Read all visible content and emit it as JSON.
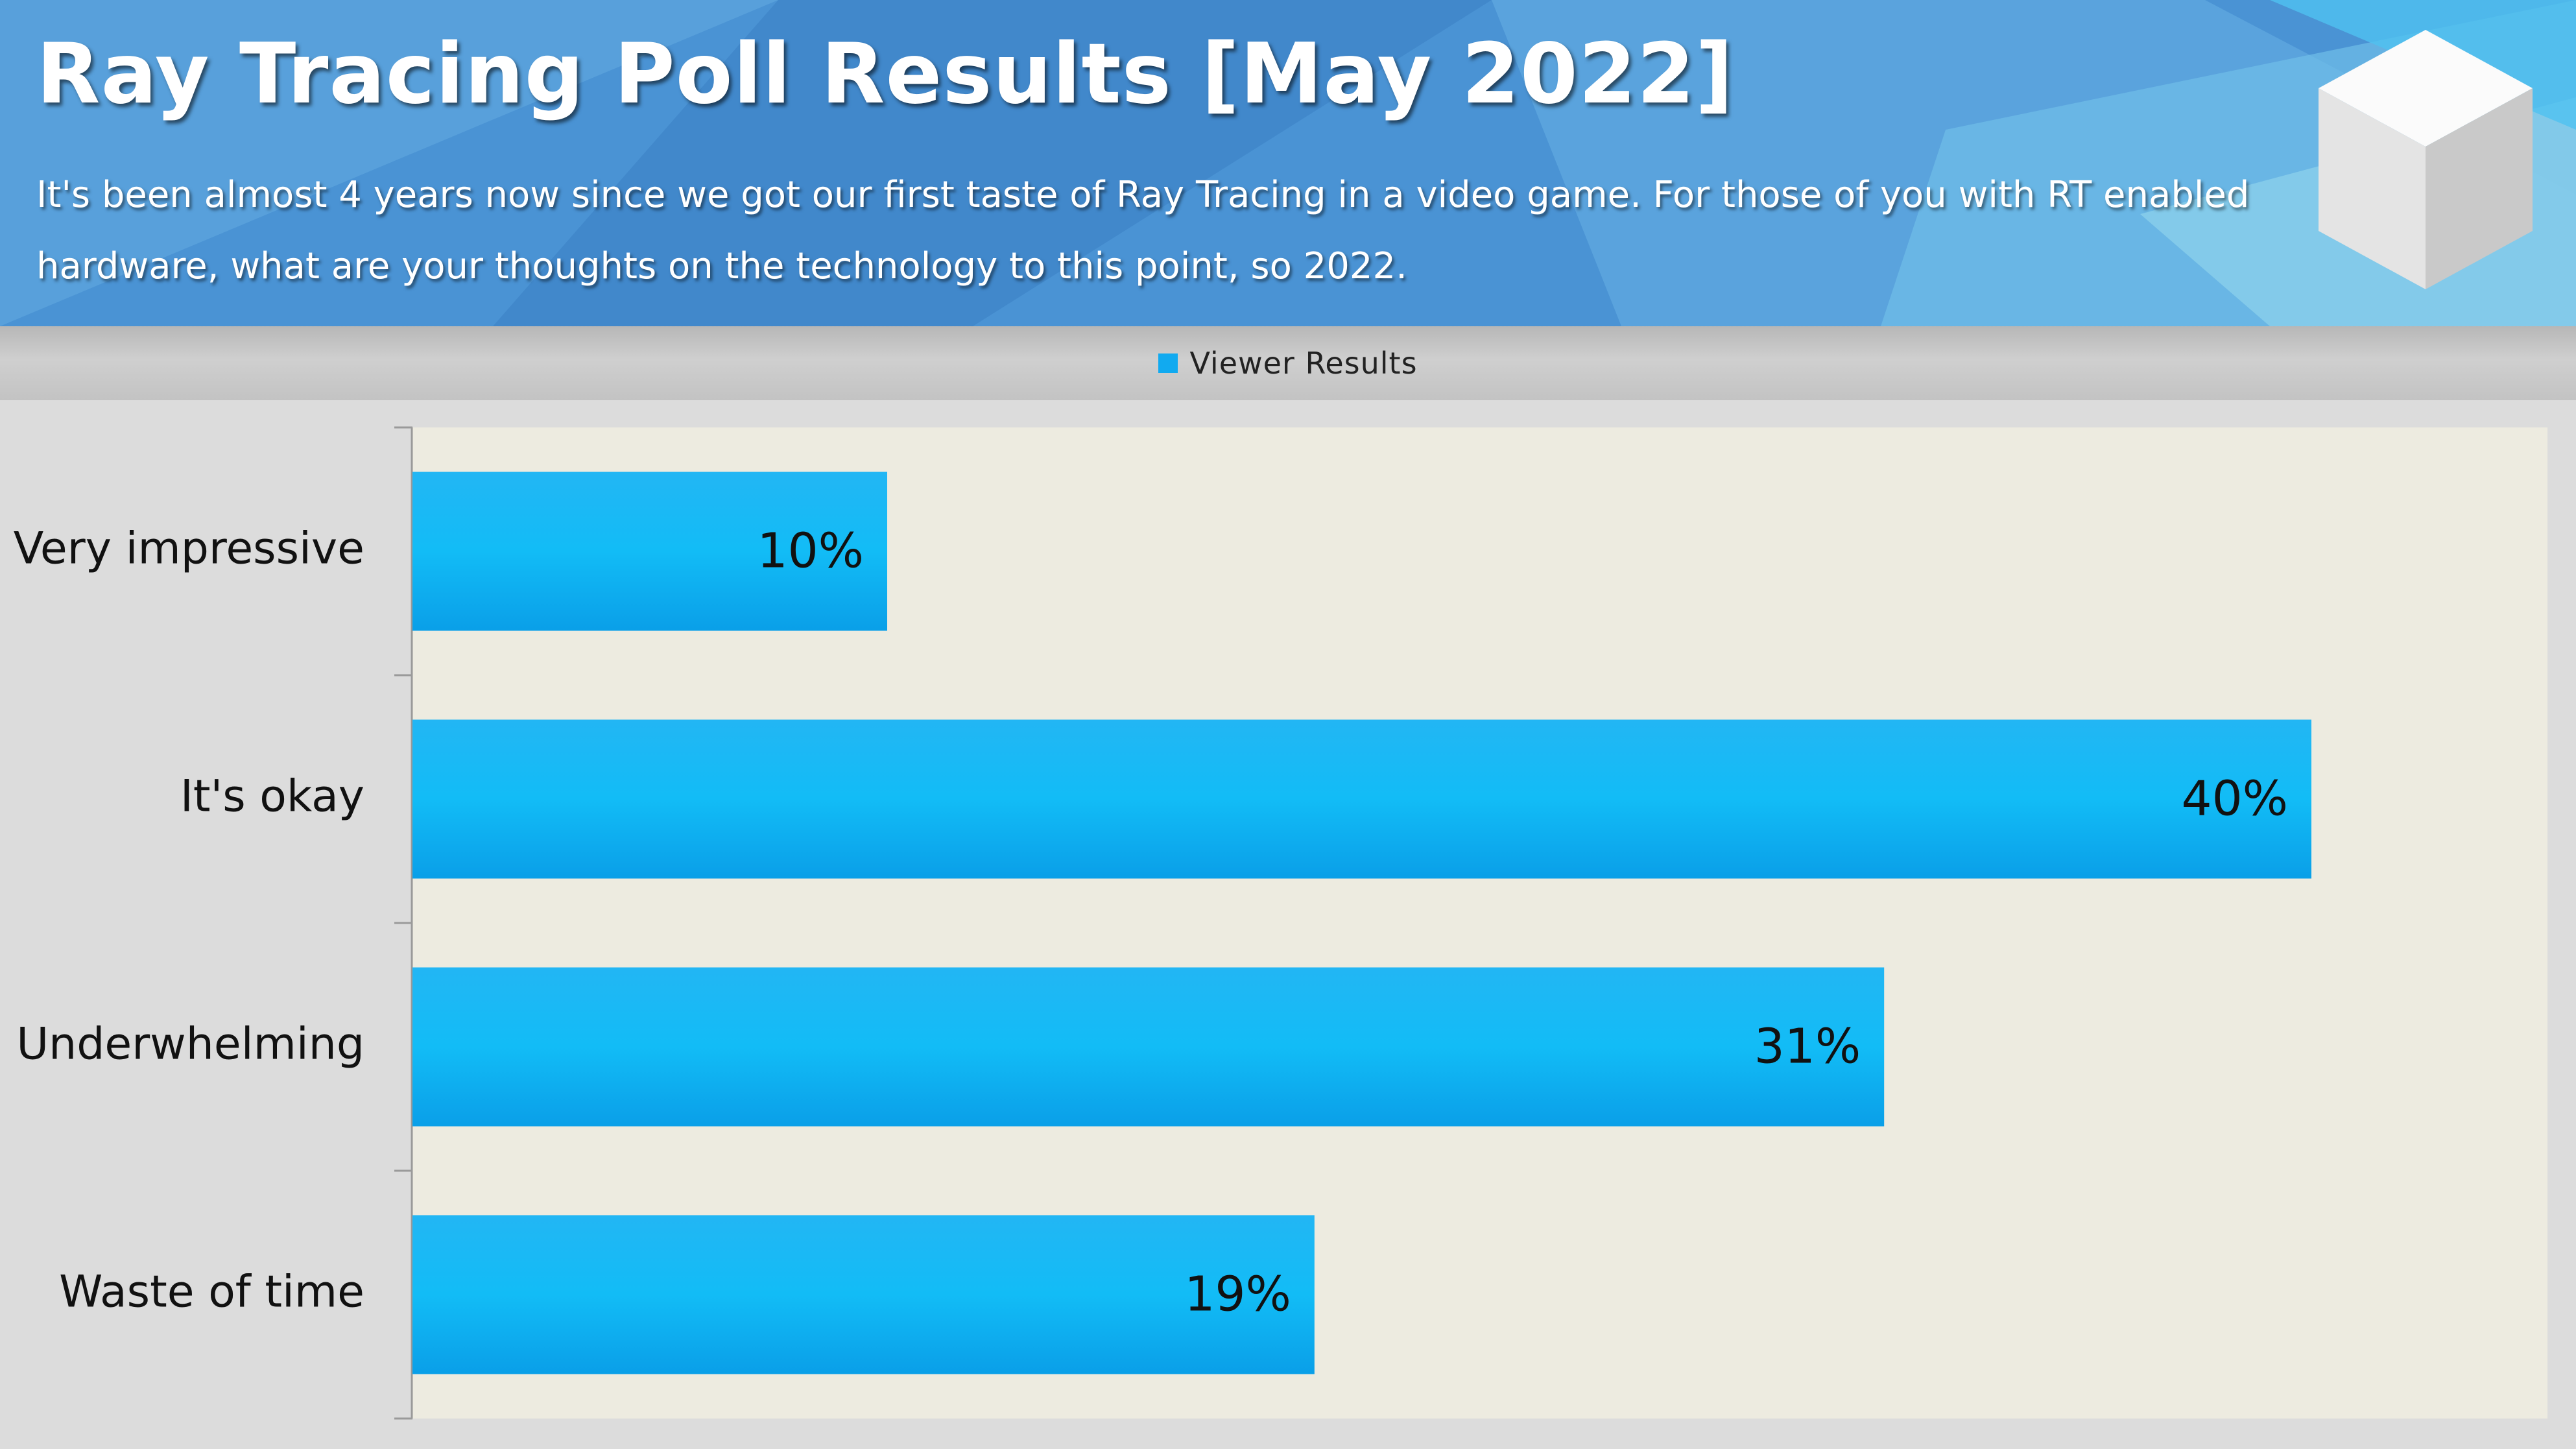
{
  "header": {
    "title": "Ray Tracing Poll Results [May 2022]",
    "subtitle": "It's been almost 4 years now since we got our first taste of Ray Tracing in a video game. For those of you with RT enabled hardware, what are your thoughts on the technology to this point, so 2022.",
    "logo_icon": "cube-icon"
  },
  "colors": {
    "bar": "#11aaf0",
    "plot_bg": "#edebe0",
    "header_blue": "#4a93d4"
  },
  "chart_data": {
    "type": "bar",
    "orientation": "horizontal",
    "categories": [
      "Very impressive",
      "It's okay",
      "Underwhelming",
      "Waste of time"
    ],
    "series": [
      {
        "name": "Viewer Results",
        "values": [
          10,
          40,
          31,
          19
        ]
      }
    ],
    "value_labels": [
      "10%",
      "40%",
      "31%",
      "19%"
    ],
    "unit": "%",
    "xlim": [
      0,
      45
    ],
    "legend_position": "top-center",
    "grid": false
  }
}
